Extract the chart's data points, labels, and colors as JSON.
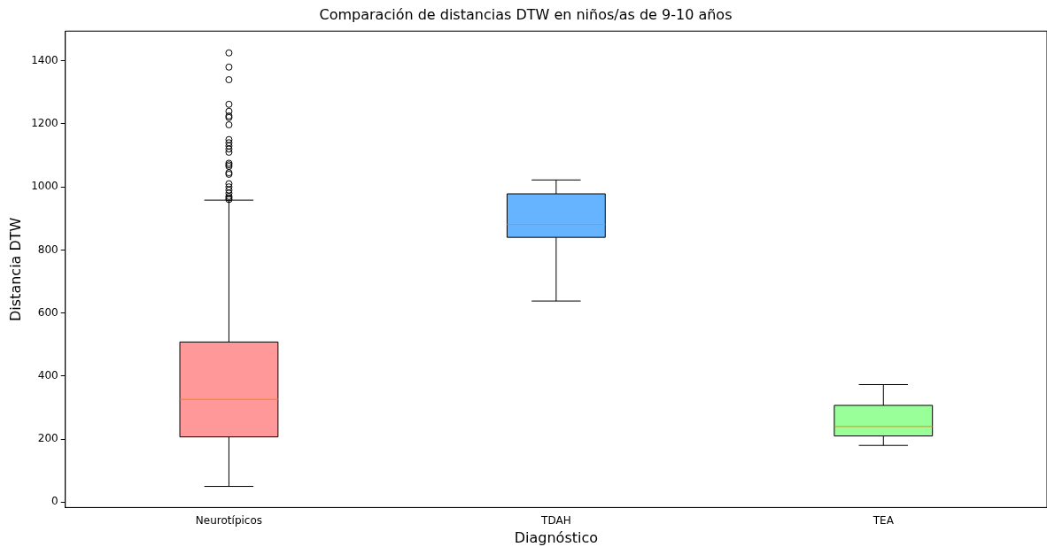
{
  "chart_data": {
    "type": "box",
    "title": "Comparación de distancias DTW en niños/as de 9-10 años",
    "xlabel": "Diagnóstico",
    "ylabel": "Distancia DTW",
    "categories": [
      "Neurotípicos",
      "TDAH",
      "TEA"
    ],
    "colors": [
      "#ff9999",
      "#66b3ff",
      "#99ff99"
    ],
    "boxes": [
      {
        "low": 50,
        "q1": 207,
        "median": 326,
        "q3": 508,
        "high": 958,
        "outliers": [
          1425,
          1380,
          1340,
          1262,
          1240,
          1225,
          1220,
          1197,
          1150,
          1140,
          1130,
          1120,
          1110,
          1075,
          1070,
          1065,
          1045,
          1040,
          1010,
          1000,
          990,
          980,
          970,
          965,
          960
        ]
      },
      {
        "low": 638,
        "q1": 840,
        "median": 881,
        "q3": 978,
        "high": 1022
      },
      {
        "low": 180,
        "q1": 210,
        "median": 240,
        "q3": 307,
        "high": 373
      }
    ],
    "ylim": [
      -17,
      1494
    ],
    "yticks": [
      0,
      200,
      400,
      600,
      800,
      1000,
      1200,
      1400
    ],
    "grid": false,
    "legend": false
  }
}
